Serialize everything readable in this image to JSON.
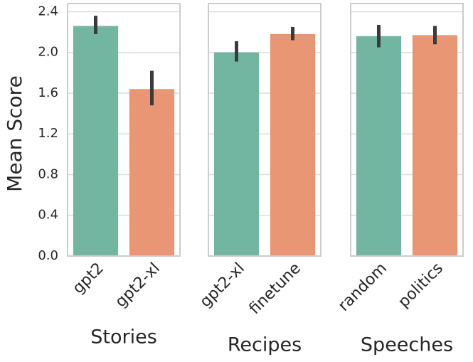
{
  "chart_data": {
    "type": "bar",
    "ylabel": "Mean Score",
    "ylim": [
      0,
      2.48
    ],
    "yticks": [
      {
        "value": 0,
        "label": "0.0"
      },
      {
        "value": 0.4,
        "label": "0.4"
      },
      {
        "value": 0.8,
        "label": "0.8"
      },
      {
        "value": 1.2,
        "label": "1.2"
      },
      {
        "value": 1.6,
        "label": "1.6"
      },
      {
        "value": 2.0,
        "label": "2.0"
      },
      {
        "value": 2.4,
        "label": "2.4"
      }
    ],
    "grid": true,
    "colors": [
      "#72b6a1",
      "#e99675"
    ],
    "panels": [
      {
        "xlabel": "Stories",
        "categories": [
          "gpt2",
          "gpt2-xl"
        ],
        "values": [
          2.26,
          1.64
        ],
        "ci_low": [
          2.18,
          1.48
        ],
        "ci_high": [
          2.36,
          1.82
        ]
      },
      {
        "xlabel": "Recipes",
        "categories": [
          "gpt2-xl",
          "finetune"
        ],
        "values": [
          2.0,
          2.18
        ],
        "ci_low": [
          1.91,
          2.12
        ],
        "ci_high": [
          2.11,
          2.25
        ]
      },
      {
        "xlabel": "Speeches",
        "categories": [
          "random",
          "politics"
        ],
        "values": [
          2.16,
          2.17
        ],
        "ci_low": [
          2.05,
          2.08
        ],
        "ci_high": [
          2.27,
          2.26
        ]
      }
    ]
  }
}
